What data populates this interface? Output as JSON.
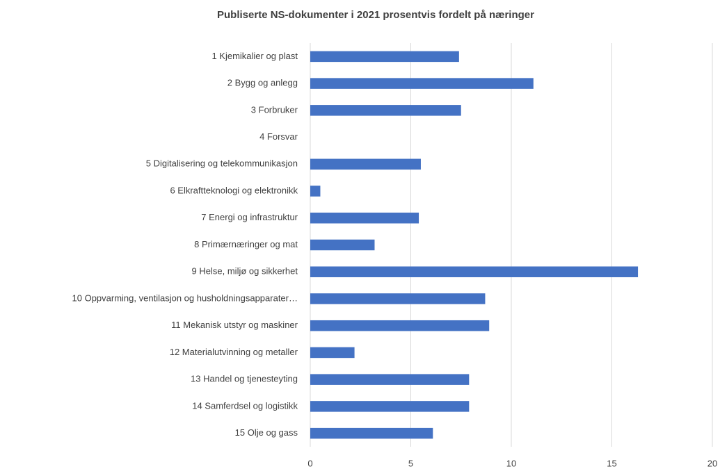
{
  "chart_data": {
    "type": "barh",
    "title": "Publiserte NS-dokumenter i 2021 prosentvis fordelt på næringer",
    "categories": [
      "1 Kjemikalier og plast",
      "2 Bygg og anlegg",
      "3 Forbruker",
      "4 Forsvar",
      "5 Digitalisering og telekommunikasjon",
      "6 Elkraftteknologi og elektronikk",
      "7 Energi og infrastruktur",
      "8 Primærnæringer og mat",
      "9 Helse, miljø og sikkerhet",
      "10 Oppvarming, ventilasjon og husholdningsapparater…",
      "11 Mekanisk utstyr og maskiner",
      "12 Materialutvinning og metaller",
      "13 Handel og tjenesteyting",
      "14 Samferdsel og logistikk",
      "15 Olje og gass"
    ],
    "values": [
      7.4,
      11.1,
      7.5,
      0,
      5.5,
      0.5,
      5.4,
      3.2,
      16.3,
      8.7,
      8.9,
      2.2,
      7.9,
      7.9,
      6.1
    ],
    "color": "#4472c4",
    "xlim": [
      0,
      20
    ],
    "xticks": [
      0,
      5,
      10,
      15,
      20
    ],
    "grid": true
  }
}
